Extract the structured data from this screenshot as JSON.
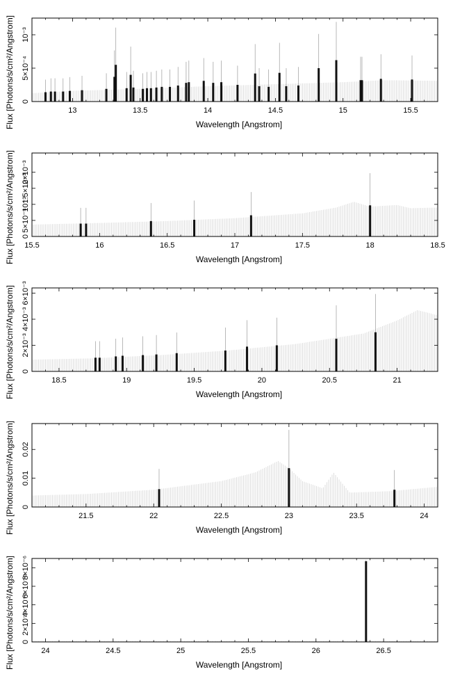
{
  "chart_data": [
    {
      "type": "bar",
      "xlabel": "Wavelength [Angstrom]",
      "ylabel": "Flux [Photons/s/cm²/Angstrom]",
      "xlim": [
        12.7,
        15.7
      ],
      "ylim": [
        0,
        0.00125
      ],
      "xticks": [
        {
          "v": 13,
          "t": "13"
        },
        {
          "v": 13.5,
          "t": "13.5"
        },
        {
          "v": 14,
          "t": "14"
        },
        {
          "v": 14.5,
          "t": "14.5"
        },
        {
          "v": 15,
          "t": "15"
        },
        {
          "v": 15.5,
          "t": "15.5"
        }
      ],
      "yticks": [
        {
          "v": 0,
          "t": "0"
        },
        {
          "v": 0.0005,
          "t": "5×10⁻⁴"
        },
        {
          "v": 0.001,
          "t": "10⁻³"
        }
      ],
      "continuum": [
        [
          12.7,
          0.000125
        ],
        [
          13.0,
          0.00016
        ],
        [
          13.5,
          0.00019
        ],
        [
          14.0,
          0.00023
        ],
        [
          14.5,
          0.00026
        ],
        [
          15.0,
          0.00029
        ],
        [
          15.3,
          0.00032
        ],
        [
          15.7,
          0.00031
        ]
      ],
      "lines": [
        [
          12.8,
          0.00014
        ],
        [
          12.84,
          0.00015
        ],
        [
          12.87,
          0.00015
        ],
        [
          12.93,
          0.00015
        ],
        [
          12.98,
          0.00016
        ],
        [
          13.07,
          0.00017
        ],
        [
          13.25,
          0.00019
        ],
        [
          13.31,
          0.00037
        ],
        [
          13.32,
          0.00055
        ],
        [
          13.4,
          0.0002
        ],
        [
          13.43,
          0.0004
        ],
        [
          13.45,
          0.00021
        ],
        [
          13.52,
          0.00019
        ],
        [
          13.55,
          0.0002
        ],
        [
          13.58,
          0.0002
        ],
        [
          13.62,
          0.00021
        ],
        [
          13.66,
          0.00022
        ],
        [
          13.72,
          0.00022
        ],
        [
          13.78,
          0.00024
        ],
        [
          13.84,
          0.00028
        ],
        [
          13.86,
          0.00029
        ],
        [
          13.97,
          0.00031
        ],
        [
          14.04,
          0.00028
        ],
        [
          14.1,
          0.00029
        ],
        [
          14.22,
          0.00025
        ],
        [
          14.35,
          0.00042
        ],
        [
          14.38,
          0.00023
        ],
        [
          14.45,
          0.00022
        ],
        [
          14.53,
          0.00043
        ],
        [
          14.58,
          0.00023
        ],
        [
          14.67,
          0.00024
        ],
        [
          14.82,
          0.0005
        ],
        [
          14.95,
          0.00062
        ],
        [
          15.13,
          0.00032
        ],
        [
          15.14,
          0.00032
        ],
        [
          15.28,
          0.00034
        ],
        [
          15.51,
          0.00033
        ]
      ]
    },
    {
      "type": "bar",
      "xlabel": "Wavelength [Angstrom]",
      "ylabel": "Flux [Photons/s/cm²/Angstrom]",
      "xlim": [
        15.5,
        18.5
      ],
      "ylim": [
        0,
        0.0026
      ],
      "xticks": [
        {
          "v": 15.5,
          "t": "15.5"
        },
        {
          "v": 16,
          "t": "16"
        },
        {
          "v": 16.5,
          "t": "16.5"
        },
        {
          "v": 17,
          "t": "17"
        },
        {
          "v": 17.5,
          "t": "17.5"
        },
        {
          "v": 18,
          "t": "18"
        },
        {
          "v": 18.5,
          "t": "18.5"
        }
      ],
      "yticks": [
        {
          "v": 0,
          "t": "0"
        },
        {
          "v": 0.0005,
          "t": "5×10⁻⁴"
        },
        {
          "v": 0.001,
          "t": "10⁻³"
        },
        {
          "v": 0.0015,
          "t": "1.5×10⁻³"
        },
        {
          "v": 0.002,
          "t": "2×10⁻³"
        }
      ],
      "continuum": [
        [
          15.5,
          0.00037
        ],
        [
          16.0,
          0.00042
        ],
        [
          16.5,
          0.00048
        ],
        [
          17.0,
          0.00057
        ],
        [
          17.5,
          0.00072
        ],
        [
          17.75,
          0.0009
        ],
        [
          17.88,
          0.00108
        ],
        [
          18.0,
          0.00093
        ],
        [
          18.2,
          0.00098
        ],
        [
          18.3,
          0.00088
        ],
        [
          18.5,
          0.0009
        ]
      ],
      "lines": [
        [
          15.86,
          0.0004
        ],
        [
          15.9,
          0.0004
        ],
        [
          16.38,
          0.00048
        ],
        [
          16.7,
          0.00052
        ],
        [
          17.12,
          0.00066
        ],
        [
          18.0,
          0.00097
        ]
      ]
    },
    {
      "type": "bar",
      "xlabel": "Wavelength [Angstrom]",
      "ylabel": "Flux [Photons/s/cm²/Angstrom]",
      "xlim": [
        18.3,
        21.3
      ],
      "ylim": [
        0,
        0.0064
      ],
      "xticks": [
        {
          "v": 18.5,
          "t": "18.5"
        },
        {
          "v": 19,
          "t": "19"
        },
        {
          "v": 19.5,
          "t": "19.5"
        },
        {
          "v": 20,
          "t": "20"
        },
        {
          "v": 20.5,
          "t": "20.5"
        },
        {
          "v": 21,
          "t": "21"
        }
      ],
      "yticks": [
        {
          "v": 0,
          "t": "0"
        },
        {
          "v": 0.002,
          "t": "2×10⁻³"
        },
        {
          "v": 0.004,
          "t": "4×10⁻³"
        },
        {
          "v": 0.006,
          "t": "6×10⁻³"
        }
      ],
      "continuum": [
        [
          18.3,
          0.0009
        ],
        [
          18.75,
          0.001
        ],
        [
          19.25,
          0.00125
        ],
        [
          19.75,
          0.0016
        ],
        [
          20.25,
          0.0021
        ],
        [
          20.75,
          0.0029
        ],
        [
          21.0,
          0.0039
        ],
        [
          21.15,
          0.0047
        ],
        [
          21.3,
          0.0043
        ]
      ],
      "lines": [
        [
          18.77,
          0.00105
        ],
        [
          18.8,
          0.00105
        ],
        [
          18.92,
          0.00115
        ],
        [
          18.97,
          0.0012
        ],
        [
          19.12,
          0.00125
        ],
        [
          19.22,
          0.0013
        ],
        [
          19.37,
          0.0014
        ],
        [
          19.73,
          0.0016
        ],
        [
          19.89,
          0.0019
        ],
        [
          20.11,
          0.002
        ],
        [
          20.55,
          0.0025
        ],
        [
          20.84,
          0.003
        ]
      ]
    },
    {
      "type": "bar",
      "xlabel": "Wavelength [Angstrom]",
      "ylabel": "Flux [Photons/s/cm²/Angstrom]",
      "xlim": [
        21.1,
        24.1
      ],
      "ylim": [
        0,
        0.029
      ],
      "xticks": [
        {
          "v": 21.5,
          "t": "21.5"
        },
        {
          "v": 22,
          "t": "22"
        },
        {
          "v": 22.5,
          "t": "22.5"
        },
        {
          "v": 23,
          "t": "23"
        },
        {
          "v": 23.5,
          "t": "23.5"
        },
        {
          "v": 24,
          "t": "24"
        }
      ],
      "yticks": [
        {
          "v": 0,
          "t": "0"
        },
        {
          "v": 0.01,
          "t": "0.01"
        },
        {
          "v": 0.02,
          "t": "0.02"
        }
      ],
      "continuum": [
        [
          21.1,
          0.004
        ],
        [
          21.5,
          0.0045
        ],
        [
          22.0,
          0.006
        ],
        [
          22.5,
          0.009
        ],
        [
          22.75,
          0.012
        ],
        [
          22.92,
          0.016
        ],
        [
          23.0,
          0.0135
        ],
        [
          23.1,
          0.009
        ],
        [
          23.25,
          0.0065
        ],
        [
          23.33,
          0.012
        ],
        [
          23.38,
          0.009
        ],
        [
          23.45,
          0.005
        ],
        [
          23.75,
          0.0055
        ],
        [
          24.1,
          0.007
        ]
      ],
      "lines": [
        [
          22.04,
          0.0062
        ],
        [
          23.0,
          0.0135
        ],
        [
          23.78,
          0.006
        ]
      ]
    },
    {
      "type": "bar",
      "xlabel": "Wavelength [Angstrom]",
      "ylabel": "Flux [Photons/s/cm²/Angstrom]",
      "xlim": [
        23.9,
        26.9
      ],
      "ylim": [
        0,
        9e-06
      ],
      "xticks": [
        {
          "v": 24,
          "t": "24"
        },
        {
          "v": 24.5,
          "t": "24.5"
        },
        {
          "v": 25,
          "t": "25"
        },
        {
          "v": 25.5,
          "t": "25.5"
        },
        {
          "v": 26,
          "t": "26"
        },
        {
          "v": 26.5,
          "t": "26.5"
        }
      ],
      "yticks": [
        {
          "v": 0,
          "t": "0"
        },
        {
          "v": 2e-06,
          "t": "2×10⁻⁶"
        },
        {
          "v": 4e-06,
          "t": "4×10⁻⁶"
        },
        {
          "v": 6e-06,
          "t": "6×10⁻⁶"
        },
        {
          "v": 8e-06,
          "t": "8×10⁻⁶"
        }
      ],
      "continuum": [
        [
          23.9,
          1e-07
        ],
        [
          26.9,
          1e-07
        ]
      ],
      "lines": [
        [
          26.37,
          8.7e-06
        ]
      ]
    }
  ]
}
